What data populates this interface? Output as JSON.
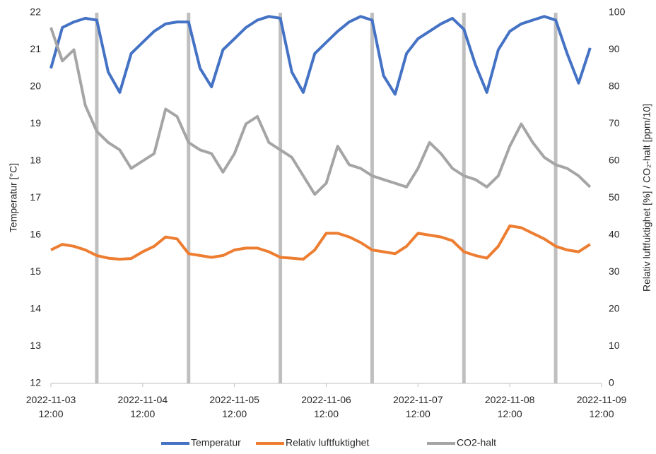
{
  "chart_data": {
    "type": "line",
    "y_label": "Temperatur  [°C]",
    "y2_label": "Relativ luftfuktighet [%] / CO₂-halt [ppm/10]",
    "x": [
      "2022-11-03 12:00",
      "2022-11-03 15:00",
      "2022-11-03 18:00",
      "2022-11-03 21:00",
      "2022-11-04 00:00",
      "2022-11-04 03:00",
      "2022-11-04 06:00",
      "2022-11-04 09:00",
      "2022-11-04 12:00",
      "2022-11-04 15:00",
      "2022-11-04 18:00",
      "2022-11-04 21:00",
      "2022-11-05 00:00",
      "2022-11-05 03:00",
      "2022-11-05 06:00",
      "2022-11-05 09:00",
      "2022-11-05 12:00",
      "2022-11-05 15:00",
      "2022-11-05 18:00",
      "2022-11-05 21:00",
      "2022-11-06 00:00",
      "2022-11-06 03:00",
      "2022-11-06 06:00",
      "2022-11-06 09:00",
      "2022-11-06 12:00",
      "2022-11-06 15:00",
      "2022-11-06 18:00",
      "2022-11-06 21:00",
      "2022-11-07 00:00",
      "2022-11-07 03:00",
      "2022-11-07 06:00",
      "2022-11-07 09:00",
      "2022-11-07 12:00",
      "2022-11-07 15:00",
      "2022-11-07 18:00",
      "2022-11-07 21:00",
      "2022-11-08 00:00",
      "2022-11-08 03:00",
      "2022-11-08 06:00",
      "2022-11-08 09:00",
      "2022-11-08 12:00",
      "2022-11-08 15:00",
      "2022-11-08 18:00",
      "2022-11-08 21:00",
      "2022-11-09 00:00",
      "2022-11-09 03:00",
      "2022-11-09 06:00",
      "2022-11-09 09:00",
      "2022-11-09 12:00"
    ],
    "series": [
      {
        "name": "Temperatur",
        "color": "#4472c4",
        "values": [
          20.5,
          21.6,
          21.75,
          21.85,
          21.8,
          20.4,
          19.85,
          20.9,
          21.2,
          21.5,
          21.7,
          21.75,
          21.75,
          20.5,
          20.0,
          21.0,
          21.3,
          21.6,
          21.8,
          21.9,
          21.85,
          20.4,
          19.85,
          20.9,
          21.2,
          21.5,
          21.75,
          21.9,
          21.8,
          20.3,
          19.8,
          20.9,
          21.3,
          21.5,
          21.7,
          21.85,
          21.55,
          20.6,
          19.85,
          21.0,
          21.5,
          21.7,
          21.8,
          21.9,
          21.8,
          20.9,
          20.1,
          21.05,
          null
        ]
      },
      {
        "name": "Relativ luftfuktighet",
        "color": "#ed7d31",
        "axis": "y2",
        "values": [
          36,
          37.5,
          37,
          36,
          34.5,
          33.8,
          33.5,
          33.7,
          35.5,
          37,
          39.5,
          39,
          35,
          34.5,
          34,
          34.5,
          36,
          36.5,
          36.5,
          35.5,
          34,
          33.8,
          33.5,
          36,
          40.5,
          40.5,
          39.5,
          38,
          36,
          35.5,
          35,
          37,
          40.5,
          40,
          39.5,
          38.5,
          35.5,
          34.5,
          33.8,
          37,
          42.5,
          42,
          40.5,
          39,
          37,
          36,
          35.5,
          37.5,
          null
        ]
      },
      {
        "name": "CO2-halt",
        "color": "#a5a5a5",
        "axis": "y2",
        "values": [
          96,
          87,
          90,
          75,
          68,
          65,
          63,
          58,
          60,
          62,
          74,
          72,
          65,
          63,
          62,
          57,
          62,
          70,
          72,
          65,
          63,
          61,
          56,
          51,
          54,
          64,
          59,
          58,
          56,
          55,
          54,
          53,
          58,
          65,
          62,
          58,
          56,
          55,
          53,
          56,
          64,
          70,
          65,
          61,
          59,
          58,
          56,
          53,
          null
        ]
      }
    ],
    "xlim": [
      "2022-11-03 12:00",
      "2022-11-09 12:00"
    ],
    "xticks": [
      "2022-11-03 12:00",
      "2022-11-04 12:00",
      "2022-11-05 12:00",
      "2022-11-06 12:00",
      "2022-11-07 12:00",
      "2022-11-08 12:00",
      "2022-11-09 12:00"
    ],
    "ylim": [
      12,
      22
    ],
    "yticks": [
      12,
      13,
      14,
      15,
      16,
      17,
      18,
      19,
      20,
      21,
      22
    ],
    "y2lim": [
      0,
      100
    ],
    "y2ticks": [
      0,
      10,
      20,
      30,
      40,
      50,
      60,
      70,
      80,
      90,
      100
    ],
    "vlines": [
      "2022-11-04 00:00",
      "2022-11-05 00:00",
      "2022-11-06 00:00",
      "2022-11-07 00:00",
      "2022-11-08 00:00",
      "2022-11-09 00:00"
    ],
    "vline_color": "#bfbfbf",
    "legend": "bottom"
  }
}
